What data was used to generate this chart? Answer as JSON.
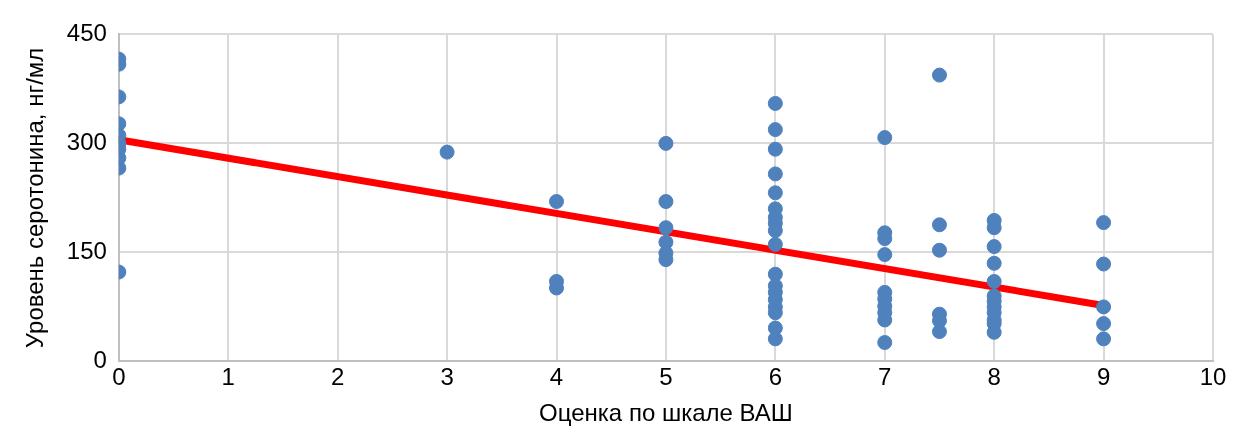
{
  "chart_data": {
    "type": "scatter",
    "xlabel": "Оценка по шкале ВАШ",
    "ylabel": "Уровень серотонина, нг/мл",
    "xlim": [
      0,
      10
    ],
    "xticks": [
      0,
      1,
      2,
      3,
      4,
      5,
      6,
      7,
      8,
      9,
      10
    ],
    "ylim": [
      0,
      450
    ],
    "yticks": [
      0,
      150,
      300,
      450
    ],
    "grid": true,
    "marker": "circle",
    "series": [
      {
        "color": "#4f81bd",
        "x": [
          0,
          0,
          0,
          0,
          0,
          0,
          0,
          0,
          0,
          0,
          3,
          4,
          4,
          4,
          5,
          5,
          5,
          5,
          5,
          5,
          6,
          6,
          6,
          6,
          6,
          6,
          6,
          6,
          6,
          6,
          6,
          6,
          6,
          6,
          6,
          6,
          6,
          6,
          7,
          7,
          7,
          7,
          7,
          7,
          7,
          7,
          7,
          7,
          7.5,
          7.5,
          7.5,
          7.5,
          7.5,
          7.5,
          8,
          8,
          8,
          8,
          8,
          8,
          8,
          8,
          8,
          8,
          8,
          8,
          9,
          9,
          9,
          9,
          9
        ],
        "values": [
          416,
          409,
          364,
          327,
          311,
          300,
          292,
          280,
          266,
          123,
          288,
          220,
          110,
          101,
          300,
          220,
          184,
          164,
          149,
          140,
          355,
          319,
          292,
          258,
          232,
          210,
          198,
          190,
          180,
          161,
          120,
          104,
          95,
          85,
          75,
          67,
          46,
          31,
          308,
          177,
          169,
          147,
          95,
          86,
          76,
          67,
          57,
          26,
          394,
          188,
          153,
          65,
          56,
          41,
          194,
          184,
          158,
          135,
          110,
          90,
          83,
          75,
          67,
          57,
          52,
          40,
          191,
          134,
          75,
          52,
          31
        ]
      },
      {
        "type": "line",
        "color": "#ff0000",
        "x": [
          0,
          9
        ],
        "values": [
          305,
          77
        ],
        "marker": "none",
        "line_style": "solid"
      }
    ]
  }
}
